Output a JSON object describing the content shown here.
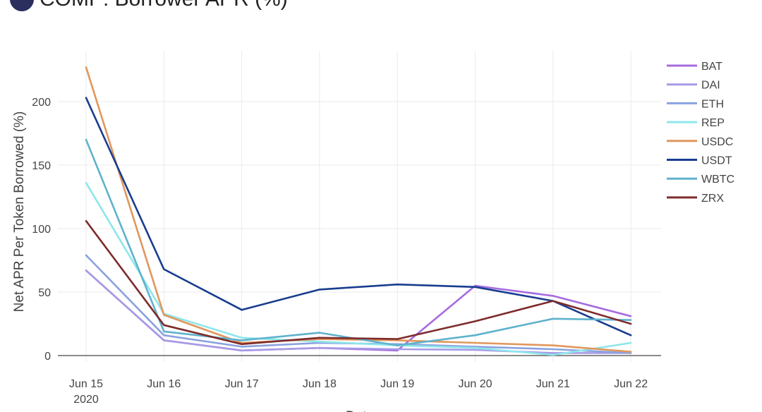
{
  "title": "COMP: Borrower APR (%)",
  "colors": {
    "BAT": "#a66be0",
    "DAI": "#a79be6",
    "ETH": "#8aa2e0",
    "REP": "#8ee6ea",
    "USDC": "#e0975c",
    "USDT": "#183d8f",
    "WBTC": "#5fb2cc",
    "ZRX": "#7e2c2c"
  },
  "chart_data": {
    "type": "line",
    "title": "COMP: Borrower APR (%)",
    "xlabel": "Date",
    "ylabel": "Net APR Per Token Borrowed (%)",
    "x": [
      "Jun 15 2020",
      "Jun 16",
      "Jun 17",
      "Jun 18",
      "Jun 19",
      "Jun 20",
      "Jun 21",
      "Jun 22"
    ],
    "x_tick_labels": [
      [
        "Jun 15",
        "2020"
      ],
      [
        "Jun 16"
      ],
      [
        "Jun 17"
      ],
      [
        "Jun 18"
      ],
      [
        "Jun 19"
      ],
      [
        "Jun 20"
      ],
      [
        "Jun 21"
      ],
      [
        "Jun 22"
      ]
    ],
    "y_ticks": [
      0,
      50,
      100,
      150,
      200
    ],
    "ylim": [
      -5,
      240
    ],
    "grid": true,
    "legend_position": "right",
    "series": [
      {
        "name": "BAT",
        "values": [
          67,
          12,
          4,
          6,
          4,
          55,
          47,
          31
        ]
      },
      {
        "name": "DAI",
        "values": [
          67,
          12,
          4,
          6,
          5,
          4.5,
          2,
          2
        ]
      },
      {
        "name": "ETH",
        "values": [
          79,
          16,
          7,
          10,
          9,
          7,
          5,
          2
        ]
      },
      {
        "name": "REP",
        "values": [
          136,
          33,
          14,
          11,
          8,
          6,
          0.5,
          10
        ]
      },
      {
        "name": "USDC",
        "values": [
          227,
          32,
          10,
          13,
          12,
          10,
          8,
          3
        ]
      },
      {
        "name": "USDT",
        "values": [
          203,
          68,
          36,
          52,
          56,
          54,
          43,
          16
        ]
      },
      {
        "name": "WBTC",
        "values": [
          170,
          19,
          12,
          18,
          8,
          16,
          29,
          28
        ]
      },
      {
        "name": "ZRX",
        "values": [
          106,
          24,
          9,
          14,
          13,
          27,
          43,
          25
        ]
      }
    ]
  }
}
